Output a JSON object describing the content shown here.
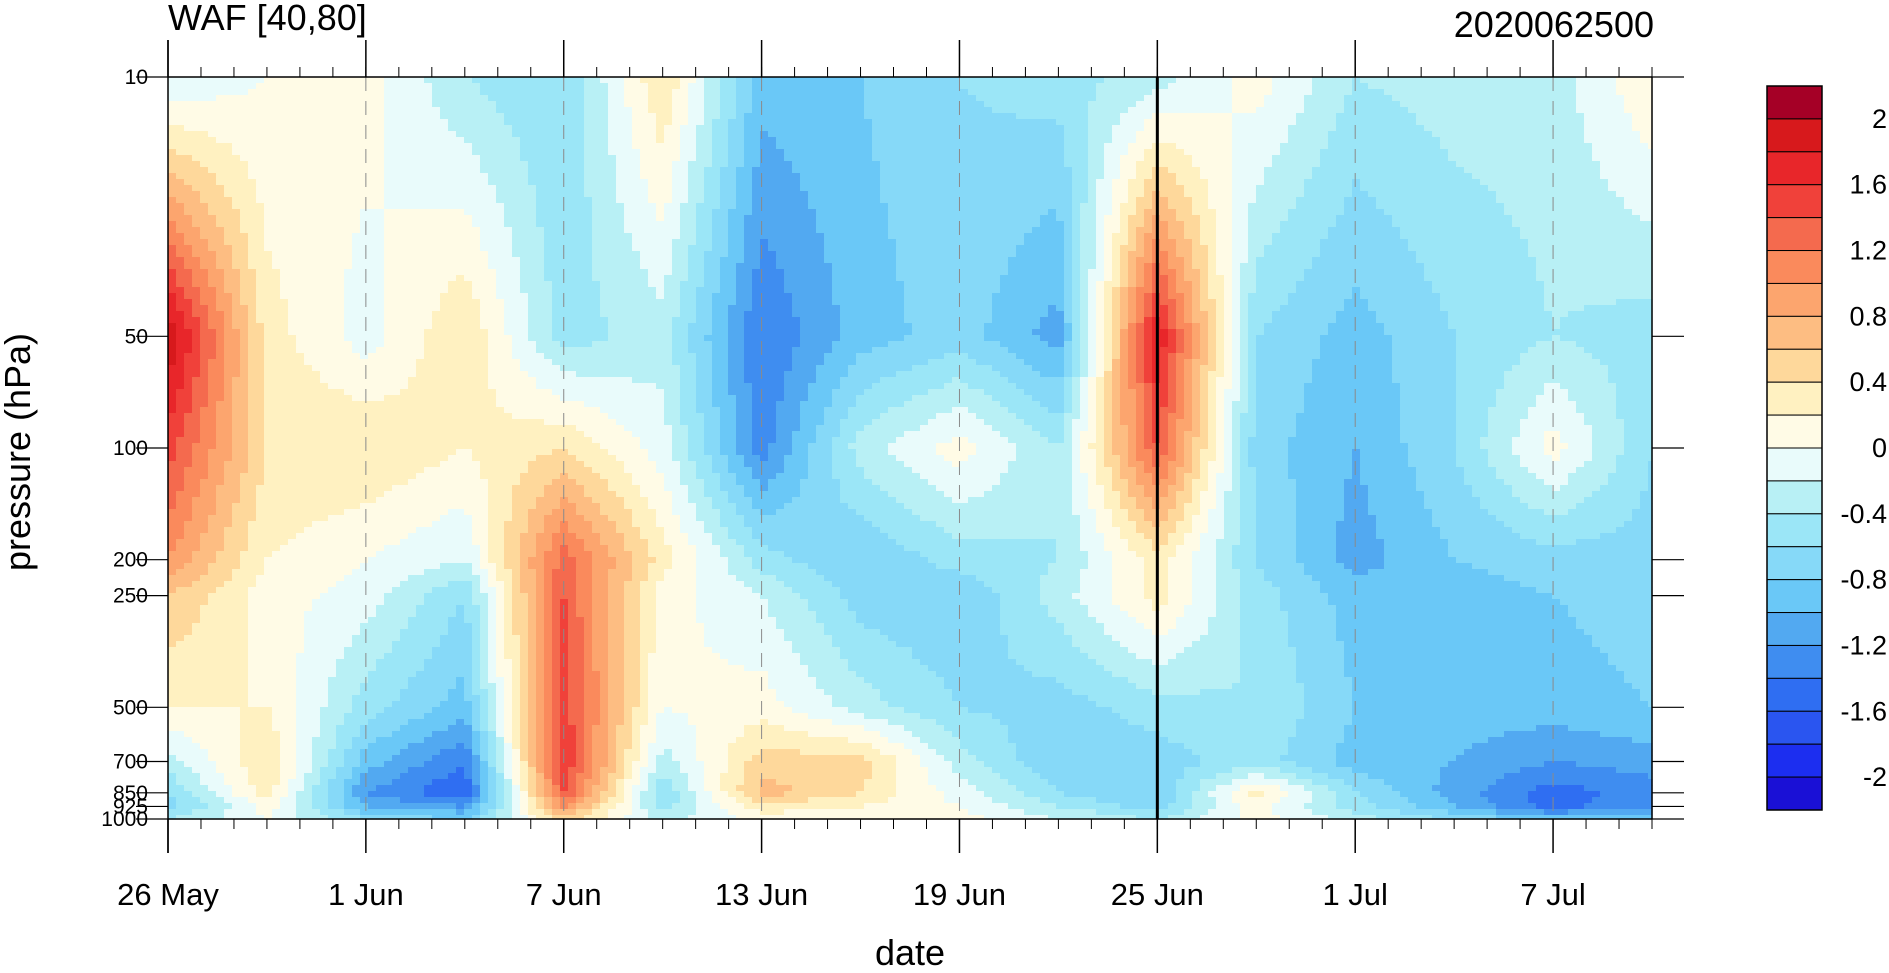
{
  "chart_data": {
    "type": "heatmap",
    "title_left": "WAF [40,80]",
    "title_right": "2020062500",
    "xlabel": "date",
    "ylabel": "pressure (hPa)",
    "x_tick_labels": [
      "26 May",
      "1 Jun",
      "7 Jun",
      "13 Jun",
      "19 Jun",
      "25 Jun",
      "1 Jul",
      "7 Jul"
    ],
    "x_range": [
      "2020-05-26",
      "2020-07-10"
    ],
    "y_tick_labels": [
      "10",
      "50",
      "100",
      "200",
      "250",
      "500",
      "700",
      "850",
      "925",
      "1000"
    ],
    "y_log_scale": true,
    "y_range": [
      1000,
      10
    ],
    "current_date_marker": "25 Jun",
    "colorbar": {
      "labels": [
        "2",
        "1.6",
        "1.2",
        "0.8",
        "0.4",
        "0",
        "-0.4",
        "-0.8",
        "-1.2",
        "-1.6",
        "-2"
      ],
      "levels": [
        2.2,
        2.0,
        1.8,
        1.6,
        1.4,
        1.2,
        1.0,
        0.8,
        0.6,
        0.4,
        0.2,
        0.0,
        -0.2,
        -0.4,
        -0.6,
        -0.8,
        -1.0,
        -1.2,
        -1.4,
        -1.6,
        -1.8,
        -2.0,
        -2.2
      ],
      "colors": [
        "#a50026",
        "#d7191c",
        "#e8262a",
        "#f0413a",
        "#f46a4e",
        "#fa8a5c",
        "#fca56e",
        "#fdbd82",
        "#fed89b",
        "#fff1c1",
        "#fffbe6",
        "#e9fbfb",
        "#b8f0f5",
        "#9be6f7",
        "#86d9f8",
        "#6ac8f7",
        "#52a9f1",
        "#3f8df0",
        "#2f6ef2",
        "#2a55f0",
        "#1c2ef0",
        "#1a10d6"
      ]
    },
    "grid": "dashed verticals at date ticks",
    "dates": [
      "2020-05-26",
      "2020-05-29",
      "2020-06-01",
      "2020-06-04",
      "2020-06-07",
      "2020-06-10",
      "2020-06-13",
      "2020-06-16",
      "2020-06-19",
      "2020-06-22",
      "2020-06-25",
      "2020-06-28",
      "2020-07-01",
      "2020-07-04",
      "2020-07-07",
      "2020-07-10"
    ],
    "pressure_levels": [
      10,
      50,
      100,
      200,
      250,
      500,
      700,
      850,
      925,
      1000
    ],
    "values": [
      [
        -0.2,
        0.0,
        0.1,
        -0.4,
        -0.6,
        0.4,
        -0.9,
        -0.8,
        -0.6,
        -0.5,
        -0.3,
        0.1,
        -0.4,
        -0.3,
        -0.3,
        0.2
      ],
      [
        2.0,
        0.3,
        -0.1,
        0.4,
        -0.5,
        -0.3,
        -1.4,
        -0.9,
        -0.7,
        -1.1,
        1.8,
        -0.6,
        -0.9,
        -0.6,
        -0.4,
        -0.5
      ],
      [
        1.5,
        0.4,
        0.4,
        0.2,
        0.4,
        -0.1,
        -1.3,
        -0.3,
        0.1,
        -0.4,
        1.4,
        -0.7,
        -1.0,
        -0.6,
        0.1,
        -0.6
      ],
      [
        1.0,
        0.2,
        0.0,
        -0.2,
        1.3,
        0.3,
        -0.5,
        -0.8,
        -0.5,
        -0.4,
        0.3,
        -0.6,
        -1.1,
        -0.8,
        -0.7,
        -0.7
      ],
      [
        0.6,
        0.1,
        -0.1,
        -0.6,
        1.4,
        0.1,
        -0.2,
        -0.7,
        -0.8,
        -0.3,
        0.3,
        -0.5,
        -0.9,
        -0.9,
        -0.8,
        -0.7
      ],
      [
        0.2,
        0.2,
        -0.5,
        -0.9,
        1.5,
        0.0,
        0.1,
        -0.3,
        -0.6,
        -0.7,
        -0.5,
        -0.4,
        -0.8,
        -0.9,
        -0.9,
        -0.8
      ],
      [
        -0.3,
        0.4,
        -0.9,
        -1.4,
        1.6,
        -0.3,
        0.5,
        0.5,
        -0.3,
        -0.8,
        -0.7,
        -0.5,
        -0.9,
        -1.0,
        -1.2,
        -1.1
      ],
      [
        -0.6,
        0.3,
        -1.2,
        -1.6,
        1.4,
        -0.6,
        0.7,
        0.4,
        -0.1,
        -0.6,
        -0.8,
        0.3,
        -0.6,
        -1.1,
        -1.5,
        -1.3
      ],
      [
        -0.7,
        0.1,
        -1.0,
        -1.2,
        1.0,
        -0.5,
        0.3,
        0.2,
        0.0,
        -0.4,
        -0.7,
        0.1,
        -0.5,
        -1.0,
        -1.5,
        -1.2
      ],
      [
        -0.4,
        0.0,
        -0.6,
        -0.8,
        0.5,
        -0.3,
        0.1,
        0.1,
        0.1,
        -0.2,
        -0.4,
        0.1,
        -0.3,
        -0.6,
        -0.9,
        -0.8
      ]
    ]
  }
}
